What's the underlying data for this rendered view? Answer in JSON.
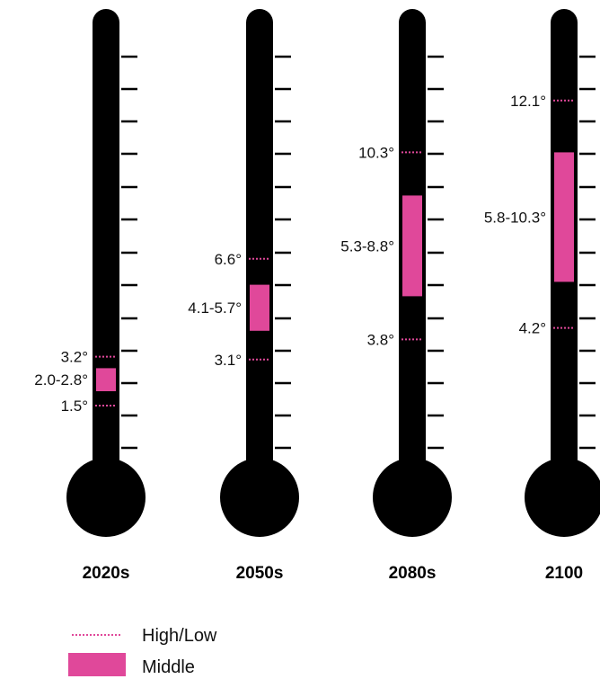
{
  "chart_data": {
    "type": "thermometer",
    "categories": [
      "2020s",
      "2050s",
      "2080s",
      "2100"
    ],
    "series": [
      {
        "name": "High/Low",
        "low": [
          1.5,
          3.1,
          3.8,
          4.2
        ],
        "high": [
          3.2,
          6.6,
          10.3,
          12.1
        ],
        "low_labels": [
          "1.5°",
          "3.1°",
          "3.8°",
          "4.2°"
        ],
        "high_labels": [
          "3.2°",
          "6.6°",
          "10.3°",
          "12.1°"
        ]
      },
      {
        "name": "Middle",
        "min": [
          2.0,
          4.1,
          5.3,
          5.8
        ],
        "max": [
          2.8,
          5.7,
          8.8,
          10.3
        ],
        "labels": [
          "2.0-2.8°",
          "4.1-5.7°",
          "5.3-8.8°",
          "5.8-10.3°"
        ]
      }
    ],
    "scale": [
      0,
      13
    ],
    "colors": {
      "tube": "#000000",
      "accent": "#e0489a"
    }
  },
  "legend": {
    "high_low": "High/Low",
    "middle": "Middle"
  }
}
